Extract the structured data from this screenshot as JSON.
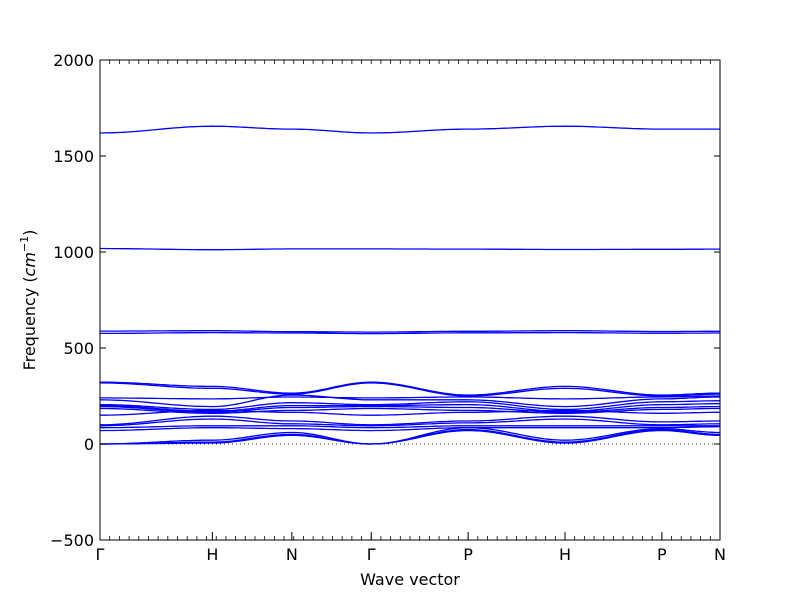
{
  "chart_data": {
    "type": "line",
    "title": "",
    "xlabel": "Wave vector",
    "ylabel_main": "Frequency (",
    "ylabel_unit_base": "cm",
    "ylabel_unit_sup": "−1",
    "ylabel_close": ")",
    "ylim": [
      -500,
      2000
    ],
    "yticks": [
      {
        "value": -500,
        "label": "−500"
      },
      {
        "value": 0,
        "label": "0"
      },
      {
        "value": 500,
        "label": "500"
      },
      {
        "value": 1000,
        "label": "1000"
      },
      {
        "value": 1500,
        "label": "1500"
      },
      {
        "value": 2000,
        "label": "2000"
      }
    ],
    "xlim": [
      0,
      6.4
    ],
    "high_symmetry_points": [
      {
        "label": "Γ",
        "x": 0.0
      },
      {
        "label": "H",
        "x": 1.16
      },
      {
        "label": "N",
        "x": 1.98
      },
      {
        "label": "Γ",
        "x": 2.8
      },
      {
        "label": "P",
        "x": 3.8
      },
      {
        "label": "H",
        "x": 4.8
      },
      {
        "label": "P",
        "x": 5.8
      },
      {
        "label": "N",
        "x": 6.4
      }
    ],
    "zero_line": {
      "y": 0,
      "style": "dotted"
    },
    "line_color": "#0000ff",
    "series_note_x": [
      0.0,
      1.16,
      1.98,
      2.8,
      3.8,
      4.8,
      5.8,
      6.4
    ],
    "bands": [
      {
        "values": [
          1620,
          1655,
          1640,
          1620,
          1640,
          1655,
          1640,
          1640
        ]
      },
      {
        "values": [
          1018,
          1012,
          1016,
          1016,
          1015,
          1013,
          1014,
          1015
        ]
      },
      {
        "values": [
          588,
          590,
          585,
          583,
          587,
          590,
          586,
          587
        ]
      },
      {
        "values": [
          576,
          580,
          578,
          575,
          579,
          580,
          577,
          578
        ]
      },
      {
        "values": [
          322,
          300,
          265,
          322,
          255,
          300,
          255,
          265
        ]
      },
      {
        "values": [
          318,
          290,
          260,
          318,
          250,
          290,
          250,
          260
        ]
      },
      {
        "values": [
          240,
          235,
          245,
          240,
          245,
          235,
          245,
          250
        ]
      },
      {
        "values": [
          230,
          195,
          255,
          230,
          230,
          195,
          235,
          245
        ]
      },
      {
        "values": [
          205,
          180,
          215,
          205,
          220,
          180,
          220,
          225
        ]
      },
      {
        "values": [
          200,
          170,
          200,
          200,
          205,
          170,
          205,
          210
        ]
      },
      {
        "values": [
          195,
          165,
          190,
          195,
          190,
          165,
          190,
          195
        ]
      },
      {
        "values": [
          185,
          160,
          175,
          185,
          175,
          160,
          180,
          185
        ]
      },
      {
        "values": [
          150,
          175,
          165,
          150,
          165,
          175,
          160,
          165
        ]
      },
      {
        "values": [
          100,
          145,
          120,
          100,
          120,
          145,
          115,
          120
        ]
      },
      {
        "values": [
          95,
          130,
          105,
          95,
          110,
          130,
          100,
          105
        ]
      },
      {
        "values": [
          85,
          95,
          95,
          85,
          95,
          95,
          95,
          95
        ]
      },
      {
        "values": [
          70,
          85,
          80,
          70,
          85,
          85,
          85,
          90
        ]
      },
      {
        "values": [
          0,
          20,
          60,
          0,
          85,
          20,
          80,
          60
        ]
      },
      {
        "values": [
          0,
          10,
          50,
          0,
          75,
          10,
          75,
          50
        ]
      },
      {
        "values": [
          0,
          5,
          45,
          0,
          70,
          5,
          70,
          45
        ]
      }
    ]
  }
}
